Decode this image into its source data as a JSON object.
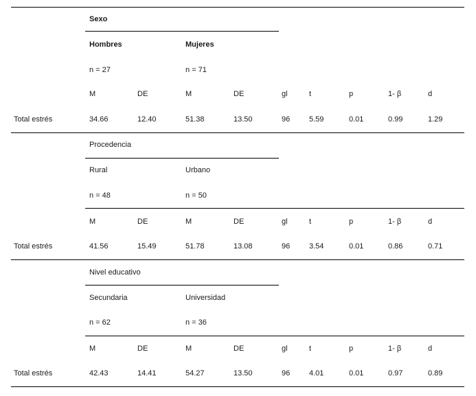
{
  "sections": [
    {
      "title": "Sexo",
      "group1": {
        "label": "Hombres",
        "n": "n = 27"
      },
      "group2": {
        "label": "Mujeres",
        "n": "n = 71"
      },
      "headers": [
        "M",
        "DE",
        "M",
        "DE",
        "gl",
        "t",
        "p",
        "1- β",
        "d"
      ],
      "row": {
        "label": "Total estrés",
        "values": [
          "34.66",
          "12.40",
          "51.38",
          "13.50",
          "96",
          "5.59",
          "0.01",
          "0.99",
          "1.29"
        ]
      }
    },
    {
      "title": "Procedencia",
      "group1": {
        "label": "Rural",
        "n": "n = 48"
      },
      "group2": {
        "label": "Urbano",
        "n": "n = 50"
      },
      "headers": [
        "M",
        "DE",
        "M",
        "DE",
        "gl",
        "t",
        "p",
        "1- β",
        "d"
      ],
      "row": {
        "label": "Total estrés",
        "values": [
          "41.56",
          "15.49",
          "51.78",
          "13.08",
          "96",
          "3.54",
          "0.01",
          "0.86",
          "0.71"
        ]
      }
    },
    {
      "title": "Nivel educativo",
      "group1": {
        "label": "Secundaria",
        "n": "n = 62"
      },
      "group2": {
        "label": "Universidad",
        "n": "n = 36"
      },
      "headers": [
        "M",
        "DE",
        "M",
        "DE",
        "gl",
        "t",
        "p",
        "1- β",
        "d"
      ],
      "row": {
        "label": "Total estrés",
        "values": [
          "42.43",
          "14.41",
          "54.27",
          "13.50",
          "96",
          "4.01",
          "0.01",
          "0.97",
          "0.89"
        ]
      }
    }
  ]
}
